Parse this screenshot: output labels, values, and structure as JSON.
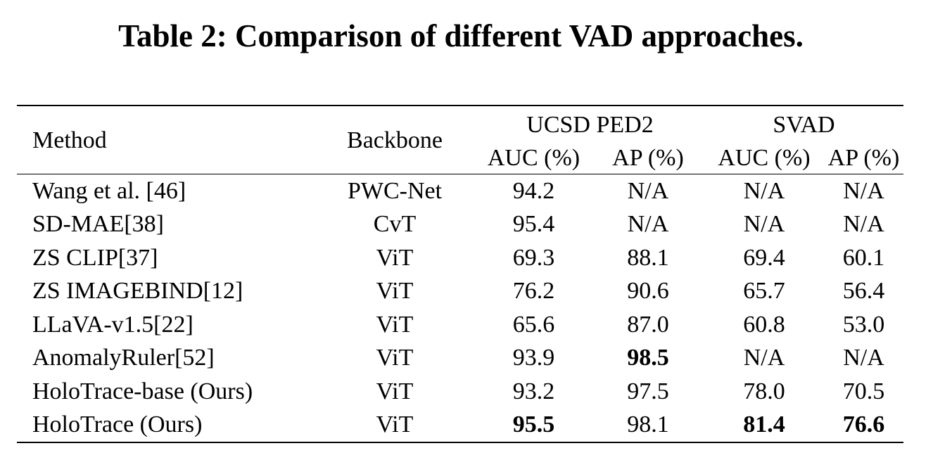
{
  "caption": "Table 2: Comparison of different VAD approaches.",
  "table": {
    "headers": {
      "method": "Method",
      "backbone": "Backbone",
      "groups": [
        "UCSD PED2",
        "SVAD"
      ],
      "subcolumns": [
        "AUC (%)",
        "AP (%)",
        "AUC (%)",
        "AP (%)"
      ]
    },
    "rows": [
      {
        "method": "Wang et al. [46]",
        "backbone": "PWC-Net",
        "values": [
          "94.2",
          "N/A",
          "N/A",
          "N/A"
        ],
        "bold": [
          false,
          false,
          false,
          false
        ]
      },
      {
        "method": "SD-MAE[38]",
        "backbone": "CvT",
        "values": [
          "95.4",
          "N/A",
          "N/A",
          "N/A"
        ],
        "bold": [
          false,
          false,
          false,
          false
        ]
      },
      {
        "method": "ZS CLIP[37]",
        "backbone": "ViT",
        "values": [
          "69.3",
          "88.1",
          "69.4",
          "60.1"
        ],
        "bold": [
          false,
          false,
          false,
          false
        ]
      },
      {
        "method": "ZS IMAGEBIND[12]",
        "backbone": "ViT",
        "values": [
          "76.2",
          "90.6",
          "65.7",
          "56.4"
        ],
        "bold": [
          false,
          false,
          false,
          false
        ]
      },
      {
        "method": "LLaVA-v1.5[22]",
        "backbone": "ViT",
        "values": [
          "65.6",
          "87.0",
          "60.8",
          "53.0"
        ],
        "bold": [
          false,
          false,
          false,
          false
        ]
      },
      {
        "method": "AnomalyRuler[52]",
        "backbone": "ViT",
        "values": [
          "93.9",
          "98.5",
          "N/A",
          "N/A"
        ],
        "bold": [
          false,
          true,
          false,
          false
        ]
      },
      {
        "method": "HoloTrace-base (Ours)",
        "backbone": "ViT",
        "values": [
          "93.2",
          "97.5",
          "78.0",
          "70.5"
        ],
        "bold": [
          false,
          false,
          false,
          false
        ]
      },
      {
        "method": "HoloTrace (Ours)",
        "backbone": "ViT",
        "values": [
          "95.5",
          "98.1",
          "81.4",
          "76.6"
        ],
        "bold": [
          true,
          false,
          true,
          true
        ]
      }
    ]
  }
}
